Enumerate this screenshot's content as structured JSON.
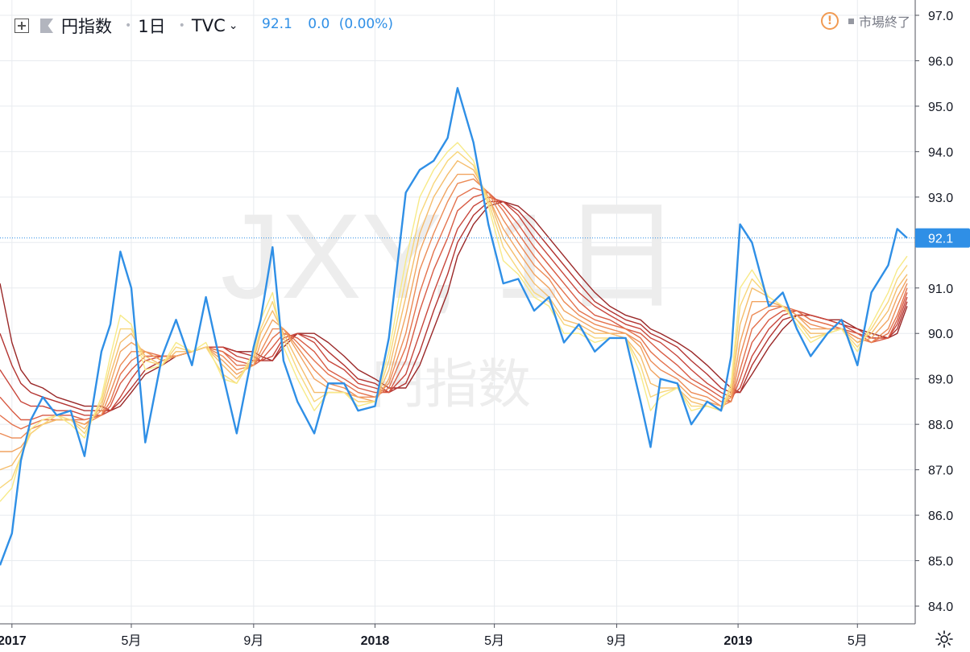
{
  "header": {
    "symbol_name": "円指数",
    "interval": "1日",
    "exchange": "TVC",
    "last": "92.1",
    "change": "0.0",
    "change_pct": "(0.00%)",
    "market_status": "市場終了"
  },
  "watermark": {
    "line1": "JXY, 1日",
    "line2": "円指数"
  },
  "colors": {
    "price": "#2f8fe6",
    "ribbon": [
      "#f7ea88",
      "#f8d67a",
      "#f5bd6c",
      "#f1a460",
      "#ec8b56",
      "#e4724d",
      "#d85b44",
      "#c8463b",
      "#b33431",
      "#9a2828"
    ],
    "grid": "#e8ebef",
    "axis_text": "#131722"
  },
  "chart_data": {
    "type": "line",
    "title": "円指数",
    "ylim": [
      84.0,
      97.0
    ],
    "y_ticks": [
      "97.0",
      "96.0",
      "95.0",
      "94.0",
      "93.0",
      "92.0",
      "91.0",
      "90.0",
      "89.0",
      "88.0",
      "87.0",
      "86.0",
      "85.0",
      "84.0"
    ],
    "x_ticks": [
      "2017",
      "5月",
      "9月",
      "2018",
      "5月",
      "9月",
      "2019",
      "5月"
    ],
    "last_price_label": "92.1",
    "x": [
      "2016-12-20",
      "2017-01-01",
      "2017-01-10",
      "2017-01-20",
      "2017-02-01",
      "2017-02-15",
      "2017-03-01",
      "2017-03-15",
      "2017-04-01",
      "2017-04-10",
      "2017-04-20",
      "2017-05-01",
      "2017-05-15",
      "2017-06-01",
      "2017-06-15",
      "2017-07-01",
      "2017-07-15",
      "2017-08-01",
      "2017-08-15",
      "2017-09-01",
      "2017-09-08",
      "2017-09-20",
      "2017-10-01",
      "2017-10-15",
      "2017-11-01",
      "2017-11-15",
      "2017-12-01",
      "2017-12-15",
      "2018-01-01",
      "2018-01-15",
      "2018-02-01",
      "2018-02-15",
      "2018-03-01",
      "2018-03-15",
      "2018-03-25",
      "2018-04-10",
      "2018-04-25",
      "2018-05-10",
      "2018-05-25",
      "2018-06-10",
      "2018-06-25",
      "2018-07-10",
      "2018-07-25",
      "2018-08-10",
      "2018-08-25",
      "2018-09-10",
      "2018-09-25",
      "2018-10-05",
      "2018-10-15",
      "2018-11-01",
      "2018-11-15",
      "2018-12-01",
      "2018-12-15",
      "2018-12-25",
      "2019-01-03",
      "2019-01-15",
      "2019-02-01",
      "2019-02-15",
      "2019-03-01",
      "2019-03-15",
      "2019-04-01",
      "2019-04-15",
      "2019-05-01",
      "2019-05-15",
      "2019-06-01",
      "2019-06-10",
      "2019-06-20"
    ],
    "series": [
      {
        "values": [
          84.9,
          85.6,
          87.2,
          88.1,
          88.6,
          88.2,
          88.3,
          87.3,
          89.6,
          90.2,
          91.8,
          91.0,
          87.6,
          89.5,
          90.3,
          89.3,
          90.8,
          89.1,
          87.8,
          89.7,
          90.3,
          91.9,
          89.4,
          88.5,
          87.8,
          88.9,
          88.9,
          88.3,
          88.4,
          89.9,
          93.1,
          93.6,
          93.8,
          94.3,
          95.4,
          94.2,
          92.4,
          91.1,
          91.2,
          90.5,
          90.8,
          89.8,
          90.2,
          89.6,
          89.9,
          89.9,
          88.5,
          87.5,
          89.0,
          88.9,
          88.0,
          88.5,
          88.3,
          89.5,
          92.4,
          92.0,
          90.6,
          90.9,
          90.1,
          89.5,
          90.0,
          90.3,
          89.3,
          90.9,
          91.5,
          92.3,
          92.1
        ]
      },
      {
        "values": [
          86.3,
          86.6,
          87.3,
          87.9,
          88.1,
          88.2,
          88.0,
          87.7,
          88.6,
          89.5,
          90.4,
          90.2,
          89.2,
          89.3,
          89.8,
          89.6,
          89.8,
          89.0,
          88.9,
          89.6,
          90.3,
          90.9,
          89.7,
          89.0,
          88.3,
          88.7,
          88.7,
          88.4,
          88.5,
          89.6,
          91.6,
          93.0,
          93.6,
          94.0,
          94.2,
          93.8,
          92.8,
          91.6,
          91.3,
          90.8,
          90.6,
          90.0,
          90.0,
          89.8,
          89.9,
          89.9,
          89.1,
          88.3,
          88.6,
          88.8,
          88.3,
          88.4,
          88.3,
          88.9,
          91.0,
          91.4,
          90.8,
          90.6,
          90.2,
          89.8,
          90.0,
          90.1,
          89.6,
          90.2,
          90.9,
          91.4,
          91.7
        ]
      },
      {
        "values": [
          86.6,
          86.8,
          87.3,
          87.8,
          88.0,
          88.2,
          88.1,
          87.8,
          88.5,
          89.3,
          90.1,
          90.1,
          89.4,
          89.3,
          89.7,
          89.6,
          89.7,
          89.1,
          88.9,
          89.5,
          90.1,
          90.7,
          89.9,
          89.2,
          88.5,
          88.7,
          88.7,
          88.5,
          88.5,
          89.4,
          91.2,
          92.6,
          93.3,
          93.8,
          94.0,
          93.7,
          92.9,
          91.9,
          91.4,
          90.9,
          90.7,
          90.2,
          90.1,
          89.9,
          89.9,
          89.9,
          89.3,
          88.6,
          88.7,
          88.8,
          88.4,
          88.4,
          88.3,
          88.8,
          90.6,
          91.2,
          90.8,
          90.6,
          90.3,
          89.9,
          90.0,
          90.1,
          89.7,
          90.1,
          90.7,
          91.2,
          91.5
        ]
      },
      {
        "values": [
          87.0,
          87.1,
          87.4,
          87.8,
          88.0,
          88.1,
          88.1,
          87.9,
          88.4,
          89.1,
          89.8,
          90.0,
          89.5,
          89.3,
          89.6,
          89.6,
          89.7,
          89.3,
          89.0,
          89.4,
          90.0,
          90.5,
          90.0,
          89.4,
          88.7,
          88.7,
          88.7,
          88.5,
          88.5,
          89.2,
          90.8,
          92.2,
          93.0,
          93.5,
          93.8,
          93.6,
          93.0,
          92.1,
          91.6,
          91.1,
          90.8,
          90.3,
          90.2,
          90.0,
          90.0,
          89.9,
          89.5,
          88.9,
          88.8,
          88.8,
          88.5,
          88.4,
          88.3,
          88.7,
          90.2,
          91.0,
          90.8,
          90.6,
          90.3,
          90.0,
          90.0,
          90.1,
          89.8,
          90.0,
          90.5,
          91.0,
          91.3
        ]
      },
      {
        "values": [
          87.4,
          87.4,
          87.5,
          87.8,
          88.0,
          88.1,
          88.1,
          88.0,
          88.3,
          88.9,
          89.6,
          89.8,
          89.6,
          89.4,
          89.5,
          89.6,
          89.7,
          89.4,
          89.1,
          89.3,
          89.8,
          90.3,
          90.1,
          89.6,
          89.0,
          88.8,
          88.7,
          88.6,
          88.5,
          89.0,
          90.4,
          91.8,
          92.6,
          93.2,
          93.5,
          93.5,
          93.0,
          92.3,
          91.8,
          91.3,
          91.0,
          90.5,
          90.3,
          90.1,
          90.0,
          90.0,
          89.7,
          89.2,
          89.0,
          88.9,
          88.6,
          88.5,
          88.4,
          88.6,
          89.8,
          90.7,
          90.7,
          90.6,
          90.4,
          90.1,
          90.1,
          90.1,
          89.8,
          89.9,
          90.3,
          90.8,
          91.2
        ]
      },
      {
        "values": [
          87.8,
          87.7,
          87.7,
          87.9,
          88.0,
          88.1,
          88.1,
          88.0,
          88.2,
          88.7,
          89.3,
          89.6,
          89.6,
          89.4,
          89.5,
          89.6,
          89.7,
          89.5,
          89.2,
          89.3,
          89.6,
          90.1,
          90.1,
          89.7,
          89.2,
          88.9,
          88.8,
          88.6,
          88.6,
          88.9,
          90.0,
          91.4,
          92.2,
          92.9,
          93.3,
          93.4,
          93.1,
          92.5,
          92.0,
          91.5,
          91.2,
          90.7,
          90.4,
          90.2,
          90.1,
          90.0,
          89.8,
          89.4,
          89.2,
          89.0,
          88.7,
          88.6,
          88.4,
          88.5,
          89.5,
          90.4,
          90.6,
          90.6,
          90.4,
          90.2,
          90.1,
          90.1,
          89.9,
          89.8,
          90.1,
          90.6,
          91.1
        ]
      },
      {
        "values": [
          88.2,
          88.0,
          87.9,
          88.0,
          88.1,
          88.1,
          88.1,
          88.1,
          88.2,
          88.5,
          89.1,
          89.4,
          89.6,
          89.5,
          89.5,
          89.6,
          89.7,
          89.6,
          89.3,
          89.3,
          89.5,
          89.9,
          90.1,
          89.8,
          89.4,
          89.1,
          88.9,
          88.7,
          88.6,
          88.8,
          89.7,
          90.9,
          91.8,
          92.5,
          93.0,
          93.2,
          93.1,
          92.7,
          92.2,
          91.7,
          91.3,
          90.9,
          90.5,
          90.3,
          90.2,
          90.1,
          89.9,
          89.6,
          89.4,
          89.1,
          88.9,
          88.7,
          88.5,
          88.5,
          89.2,
          90.1,
          90.5,
          90.6,
          90.5,
          90.3,
          90.2,
          90.1,
          89.9,
          89.8,
          90.0,
          90.4,
          91.0
        ]
      },
      {
        "values": [
          88.6,
          88.3,
          88.1,
          88.1,
          88.2,
          88.2,
          88.2,
          88.1,
          88.2,
          88.4,
          88.9,
          89.2,
          89.5,
          89.5,
          89.5,
          89.6,
          89.7,
          89.6,
          89.4,
          89.3,
          89.4,
          89.7,
          90.0,
          89.9,
          89.6,
          89.2,
          89.0,
          88.8,
          88.7,
          88.7,
          89.4,
          90.5,
          91.4,
          92.1,
          92.7,
          93.0,
          93.1,
          92.8,
          92.4,
          91.9,
          91.5,
          91.1,
          90.7,
          90.4,
          90.3,
          90.1,
          90.0,
          89.8,
          89.6,
          89.3,
          89.0,
          88.8,
          88.6,
          88.5,
          89.0,
          89.8,
          90.3,
          90.5,
          90.5,
          90.3,
          90.2,
          90.1,
          90.0,
          89.8,
          89.9,
          90.3,
          90.9
        ]
      },
      {
        "values": [
          89.2,
          88.8,
          88.5,
          88.4,
          88.4,
          88.3,
          88.3,
          88.2,
          88.2,
          88.3,
          88.6,
          89.0,
          89.4,
          89.5,
          89.5,
          89.6,
          89.7,
          89.7,
          89.5,
          89.4,
          89.4,
          89.5,
          89.9,
          90.0,
          89.8,
          89.4,
          89.2,
          88.9,
          88.8,
          88.7,
          89.1,
          90.0,
          90.9,
          91.7,
          92.3,
          92.8,
          93.0,
          92.9,
          92.6,
          92.1,
          91.7,
          91.3,
          90.9,
          90.6,
          90.4,
          90.2,
          90.1,
          89.9,
          89.8,
          89.5,
          89.2,
          88.9,
          88.7,
          88.6,
          88.8,
          89.5,
          90.1,
          90.4,
          90.5,
          90.4,
          90.3,
          90.2,
          90.0,
          89.9,
          89.9,
          90.2,
          90.8
        ]
      },
      {
        "values": [
          90.0,
          89.3,
          88.9,
          88.7,
          88.6,
          88.5,
          88.4,
          88.3,
          88.3,
          88.3,
          88.5,
          88.8,
          89.2,
          89.4,
          89.5,
          89.6,
          89.7,
          89.7,
          89.6,
          89.5,
          89.4,
          89.4,
          89.8,
          90.0,
          89.9,
          89.6,
          89.3,
          89.0,
          88.9,
          88.7,
          88.9,
          89.6,
          90.5,
          91.3,
          92.0,
          92.6,
          92.9,
          92.9,
          92.7,
          92.3,
          91.9,
          91.5,
          91.1,
          90.7,
          90.5,
          90.3,
          90.2,
          90.0,
          89.9,
          89.7,
          89.4,
          89.1,
          88.8,
          88.7,
          88.7,
          89.3,
          89.9,
          90.3,
          90.4,
          90.4,
          90.3,
          90.2,
          90.1,
          89.9,
          89.9,
          90.1,
          90.7
        ]
      },
      {
        "values": [
          91.1,
          89.8,
          89.2,
          88.9,
          88.8,
          88.6,
          88.5,
          88.4,
          88.4,
          88.3,
          88.4,
          88.7,
          89.1,
          89.3,
          89.5,
          89.6,
          89.7,
          89.7,
          89.6,
          89.6,
          89.5,
          89.4,
          89.7,
          90.0,
          90.0,
          89.8,
          89.5,
          89.2,
          89.0,
          88.8,
          88.8,
          89.3,
          90.1,
          90.9,
          91.7,
          92.4,
          92.8,
          92.9,
          92.8,
          92.5,
          92.1,
          91.7,
          91.3,
          90.9,
          90.6,
          90.4,
          90.3,
          90.1,
          90.0,
          89.8,
          89.6,
          89.3,
          89.0,
          88.8,
          88.7,
          89.1,
          89.7,
          90.1,
          90.4,
          90.4,
          90.3,
          90.3,
          90.1,
          90.0,
          89.9,
          90.0,
          90.6
        ]
      }
    ]
  }
}
